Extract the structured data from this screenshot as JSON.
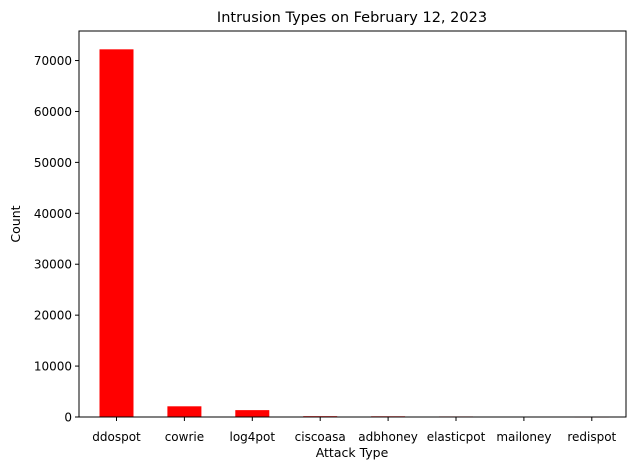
{
  "chart_data": {
    "type": "bar",
    "title": "Intrusion Types on February 12, 2023",
    "xlabel": "Attack Type",
    "ylabel": "Count",
    "categories": [
      "ddospot",
      "cowrie",
      "log4pot",
      "ciscoasa",
      "adbhoney",
      "elasticpot",
      "mailoney",
      "redispot"
    ],
    "values": [
      72200,
      2100,
      1350,
      160,
      140,
      110,
      70,
      15
    ],
    "ylim": [
      0,
      75800
    ],
    "yticks": [
      0,
      10000,
      20000,
      30000,
      40000,
      50000,
      60000,
      70000
    ],
    "bar_color": "#ff0000",
    "grid": false,
    "legend": false
  }
}
